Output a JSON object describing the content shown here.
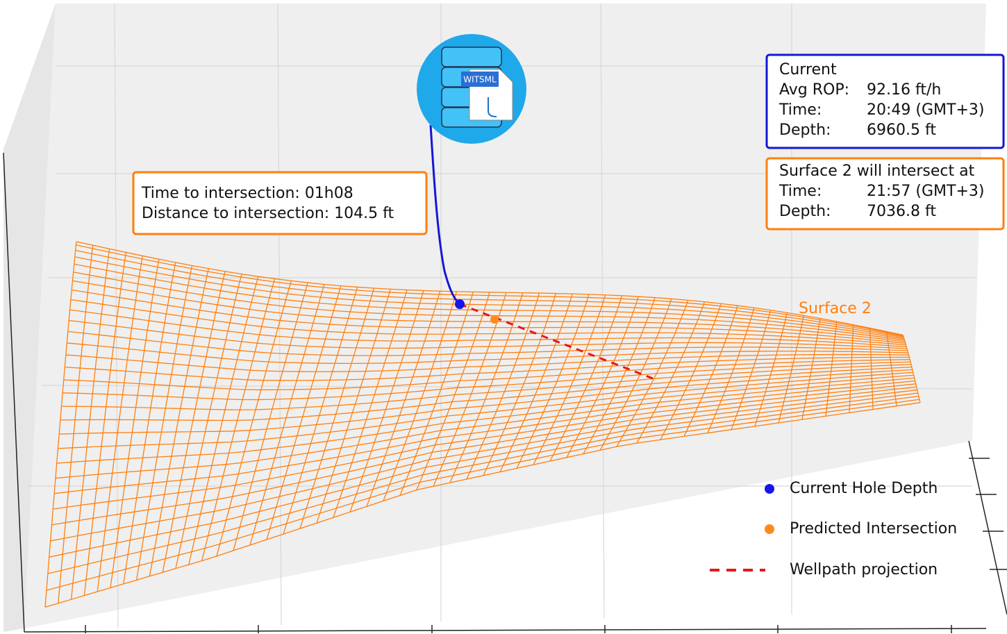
{
  "intersection_box": {
    "lines": [
      "Time to intersection: 01h08",
      "Distance to intersection: 104.5 ft"
    ]
  },
  "current_box": {
    "title": "Current",
    "rows": [
      [
        "Avg ROP:",
        "92.16 ft/h"
      ],
      [
        "Time:",
        "20:49 (GMT+3)"
      ],
      [
        "Depth:",
        "6960.5 ft"
      ]
    ]
  },
  "prediction_box": {
    "title": "Surface 2 will intersect at",
    "rows": [
      [
        "Time:",
        "21:57 (GMT+3)"
      ],
      [
        "Depth:",
        "7036.8 ft"
      ]
    ]
  },
  "surface_label": "Surface 2",
  "icon_label": "WITSML",
  "legend": [
    "Current Hole Depth",
    "Predicted Intersection",
    "Wellpath projection"
  ]
}
